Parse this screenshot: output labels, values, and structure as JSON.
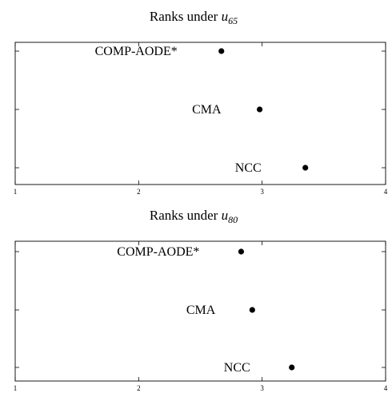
{
  "chart_data": [
    {
      "type": "scatter",
      "title": "Ranks under",
      "title_var": "u",
      "title_sub": "65",
      "xlim": [
        1,
        4
      ],
      "xticks": [
        "1",
        "2",
        "3",
        "4"
      ],
      "grid": false,
      "points": [
        {
          "label": "COMP-AODE*",
          "x": 2.67
        },
        {
          "label": "CMA",
          "x": 2.98
        },
        {
          "label": "NCC",
          "x": 3.35
        }
      ]
    },
    {
      "type": "scatter",
      "title": "Ranks under",
      "title_var": "u",
      "title_sub": "80",
      "xlim": [
        1,
        4
      ],
      "xticks": [
        "1",
        "2",
        "3",
        "4"
      ],
      "grid": false,
      "points": [
        {
          "label": "COMP-AODE*",
          "x": 2.83
        },
        {
          "label": "CMA",
          "x": 2.92
        },
        {
          "label": "NCC",
          "x": 3.24
        }
      ]
    }
  ]
}
